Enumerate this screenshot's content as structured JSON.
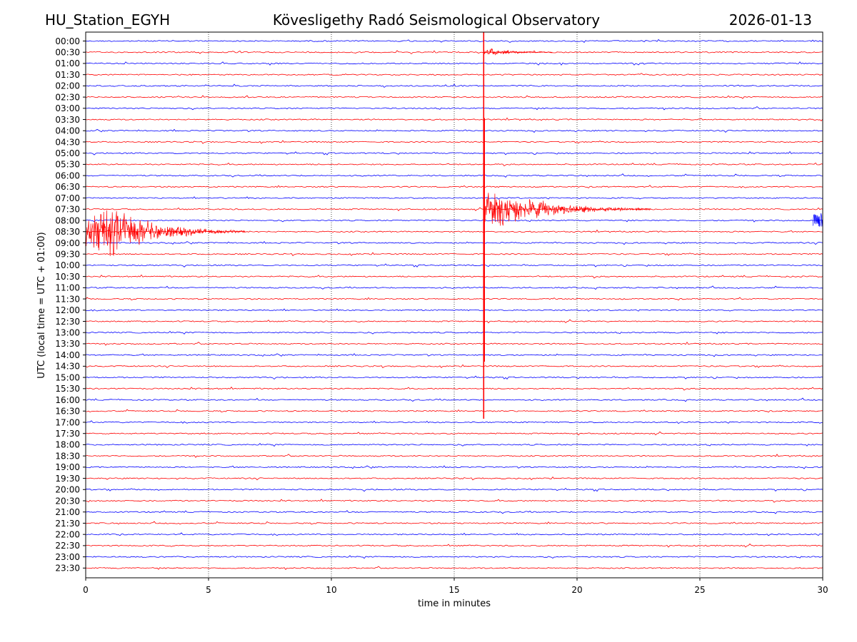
{
  "header": {
    "station": "HU_Station_EGYH",
    "observatory": "Kövesligethy Radó Seismological Observatory",
    "date": "2026-01-13"
  },
  "chart_data": {
    "type": "line",
    "title": "Kövesligethy Radó Seismological Observatory",
    "xlabel": "time in minutes",
    "ylabel": "UTC (local time = UTC + 01:00)",
    "xlim": [
      0,
      30
    ],
    "x_ticks": [
      0,
      5,
      10,
      15,
      20,
      25,
      30
    ],
    "grid": "vertical dotted at x ticks",
    "trace_colors": [
      "#0000ff",
      "#ff0000"
    ],
    "rows": [
      "00:00",
      "00:30",
      "01:00",
      "01:30",
      "02:00",
      "02:30",
      "03:00",
      "03:30",
      "04:00",
      "04:30",
      "05:00",
      "05:30",
      "06:00",
      "06:30",
      "07:00",
      "07:30",
      "08:00",
      "08:30",
      "09:00",
      "09:30",
      "10:00",
      "10:30",
      "11:00",
      "11:30",
      "12:00",
      "12:30",
      "13:00",
      "13:30",
      "14:00",
      "14:30",
      "15:00",
      "15:30",
      "16:00",
      "16:30",
      "17:00",
      "17:30",
      "18:00",
      "18:30",
      "19:00",
      "19:30",
      "20:00",
      "20:30",
      "21:00",
      "21:30",
      "22:00",
      "22:30",
      "23:00",
      "23:30"
    ],
    "events": [
      {
        "row": "08:30",
        "start_min": 0.0,
        "peak_min": 1.0,
        "end_min": 6.5,
        "amplitude_rows": 2.6
      },
      {
        "row": "07:30",
        "start_min": 16.2,
        "peak_min": 16.5,
        "end_min": 23.0,
        "amplitude_rows": 2.2
      },
      {
        "row": "00:30",
        "start_min": 16.2,
        "peak_min": 16.35,
        "end_min": 19.0,
        "amplitude_rows": 0.45
      },
      {
        "row": "08:00",
        "start_min": 29.6,
        "peak_min": 30.0,
        "end_min": 30.0,
        "amplitude_rows": 1.1
      }
    ],
    "spike": {
      "x_min": 16.2,
      "from_row": "00:00",
      "to_row": "17:00"
    }
  }
}
